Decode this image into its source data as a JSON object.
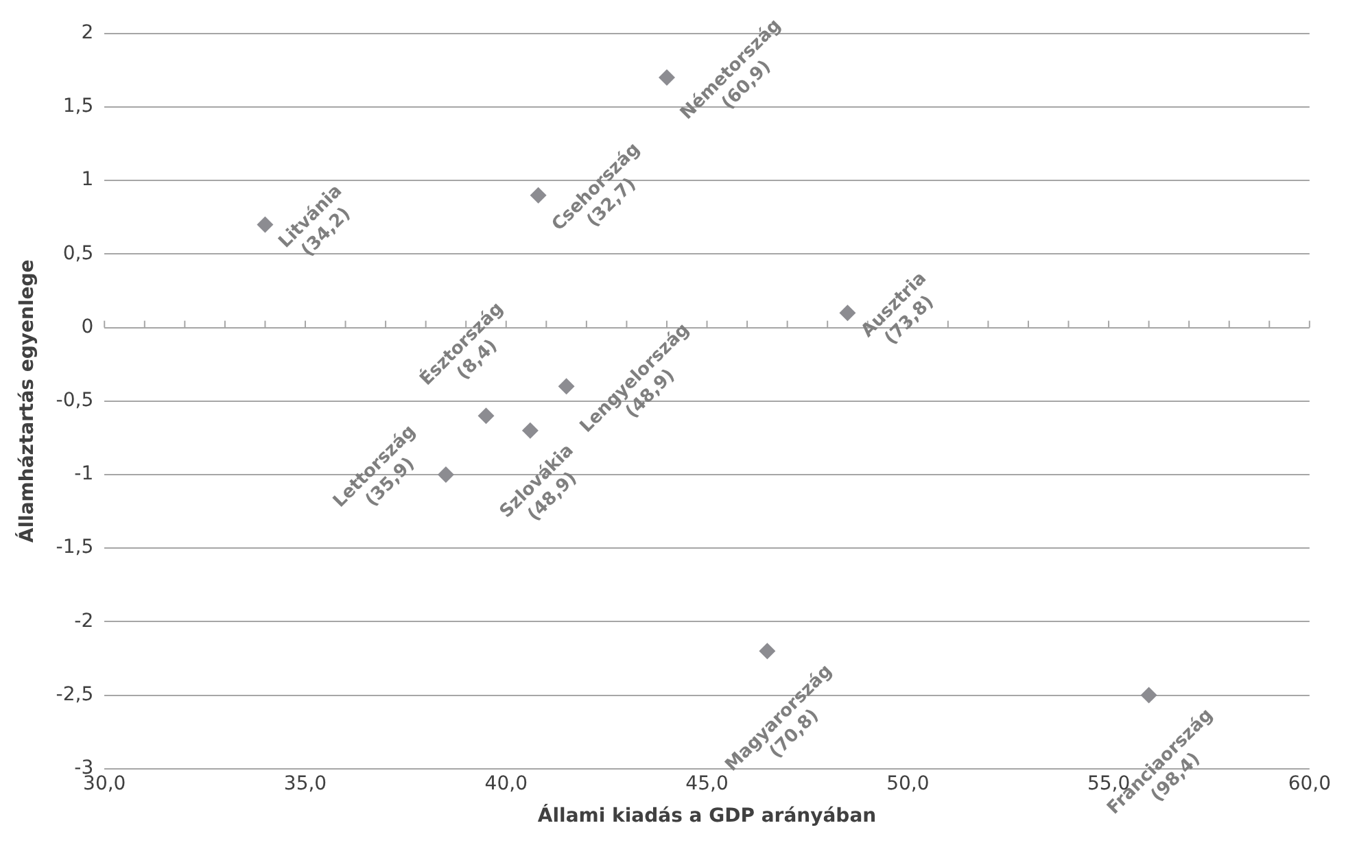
{
  "chart_data": {
    "type": "scatter",
    "xlabel": "Állami kiadás a GDP arányában",
    "ylabel": "Államháztartás egyenlege",
    "series": [
      {
        "color": "#8c8c91",
        "x": [
          34.0,
          40.8,
          44.0,
          48.5,
          39.5,
          41.5,
          40.6,
          38.5,
          46.5,
          56.0
        ],
        "values": [
          0.7,
          0.9,
          1.7,
          0.1,
          -0.6,
          -0.4,
          -0.7,
          -1.0,
          -2.2,
          -2.5
        ]
      }
    ],
    "marker": "diamond",
    "grid": "y",
    "legend": false,
    "xlim": [
      30,
      60
    ],
    "xticks": [
      {
        "value": 30,
        "label": "30,0"
      },
      {
        "value": 35,
        "label": "35,0"
      },
      {
        "value": 40,
        "label": "40,0"
      },
      {
        "value": 45,
        "label": "45,0"
      },
      {
        "value": 50,
        "label": "50,0"
      },
      {
        "value": 55,
        "label": "55,0"
      },
      {
        "value": 60,
        "label": "60,0"
      }
    ],
    "ylim": [
      -3,
      2
    ],
    "yticks": [
      -3,
      {
        "value": -2.5,
        "label": "-2,5"
      },
      -2,
      {
        "value": -1.5,
        "label": "-1,5"
      },
      -1,
      {
        "value": -0.5,
        "label": "-0,5"
      },
      0,
      {
        "value": 0.5,
        "label": "0,5"
      },
      1,
      {
        "value": 1.5,
        "label": "1,5"
      },
      2
    ],
    "annotations": [
      {
        "text": "Litvánia\n(34,2)",
        "x": 34.0,
        "y": 0.7
      },
      {
        "text": "Csehország\n(32,7)",
        "x": 40.8,
        "y": 0.9
      },
      {
        "text": "Németország\n(60,9)",
        "x": 44.0,
        "y": 1.7
      },
      {
        "text": "Ausztria\n(73,8)",
        "x": 48.5,
        "y": 0.1
      },
      {
        "text": "Észtország\n(8,4)",
        "x": 39.5,
        "y": -0.6
      },
      {
        "text": "Lengyelország\n(48,9)",
        "x": 41.5,
        "y": -0.4
      },
      {
        "text": "Szlovákia\n(48,9)",
        "x": 40.6,
        "y": -0.7
      },
      {
        "text": "Lettország\n(35,9)",
        "x": 38.5,
        "y": -1.0
      },
      {
        "text": "Magyarország\n(70,8)",
        "x": 46.5,
        "y": -2.2
      },
      {
        "text": "Franciaország\n(98,4)",
        "x": 56.0,
        "y": -2.5
      }
    ]
  }
}
